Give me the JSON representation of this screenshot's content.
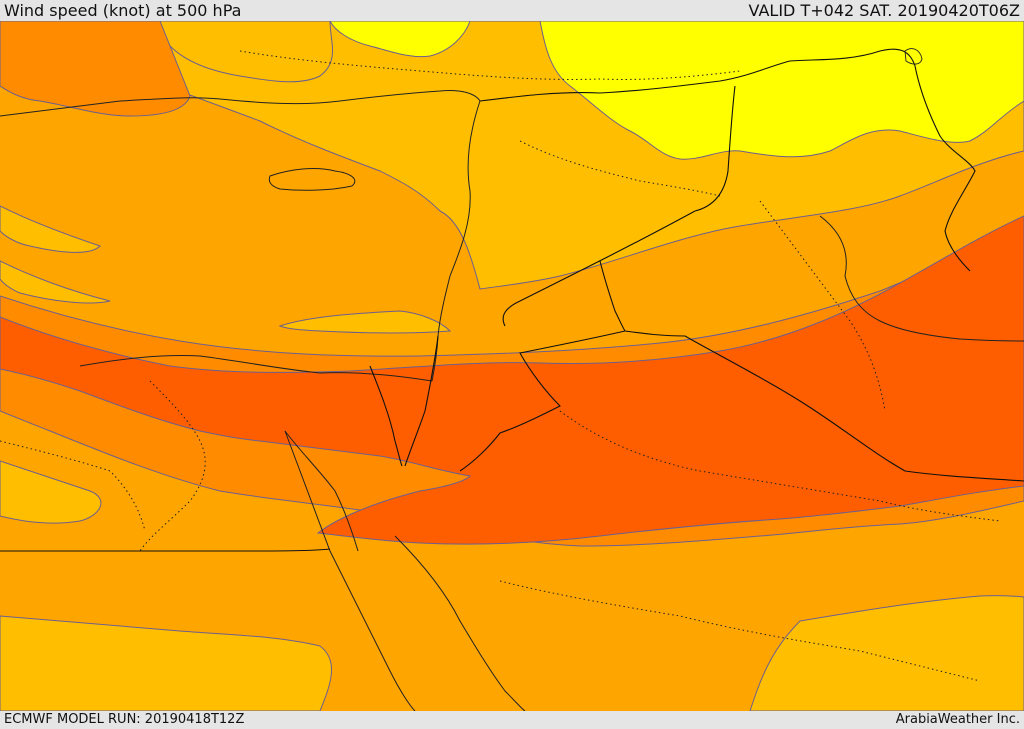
{
  "header": {
    "title": "Wind speed (knot) at 500 hPa",
    "valid": "VALID T+042 SAT. 20190420T06Z"
  },
  "footer": {
    "model_run": "ECMWF MODEL RUN: 20190418T12Z",
    "credit": "ArabiaWeather Inc."
  },
  "colors": {
    "background": "#e5e5e5",
    "band_lightest": "#ffff00",
    "band_light": "#ffd000",
    "band_mid_light": "#ffbf00",
    "band_mid": "#ffa500",
    "band_mid_dark": "#ff8c00",
    "band_strong": "#ff6a00",
    "band_strongest": "#ff5a00",
    "contour_line": "#6d5f8e",
    "coastline": "#222222"
  }
}
